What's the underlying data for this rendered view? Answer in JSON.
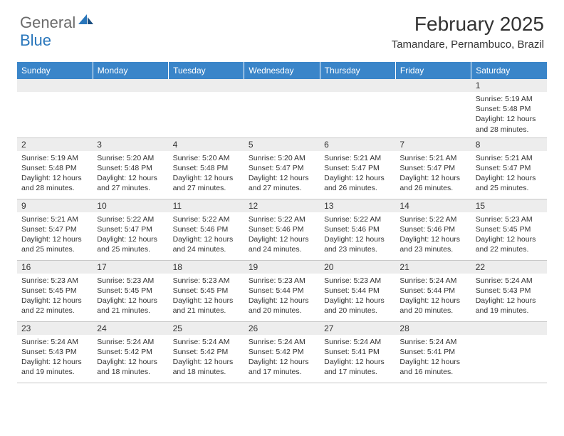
{
  "logo": {
    "part1": "General",
    "part2": "Blue"
  },
  "title": "February 2025",
  "location": "Tamandare, Pernambuco, Brazil",
  "header_bg": "#3a85c9",
  "daynum_bg": "#ededed",
  "weekdays": [
    "Sunday",
    "Monday",
    "Tuesday",
    "Wednesday",
    "Thursday",
    "Friday",
    "Saturday"
  ],
  "weeks": [
    [
      null,
      null,
      null,
      null,
      null,
      null,
      {
        "n": "1",
        "sr": "Sunrise: 5:19 AM",
        "ss": "Sunset: 5:48 PM",
        "dl": "Daylight: 12 hours and 28 minutes."
      }
    ],
    [
      {
        "n": "2",
        "sr": "Sunrise: 5:19 AM",
        "ss": "Sunset: 5:48 PM",
        "dl": "Daylight: 12 hours and 28 minutes."
      },
      {
        "n": "3",
        "sr": "Sunrise: 5:20 AM",
        "ss": "Sunset: 5:48 PM",
        "dl": "Daylight: 12 hours and 27 minutes."
      },
      {
        "n": "4",
        "sr": "Sunrise: 5:20 AM",
        "ss": "Sunset: 5:48 PM",
        "dl": "Daylight: 12 hours and 27 minutes."
      },
      {
        "n": "5",
        "sr": "Sunrise: 5:20 AM",
        "ss": "Sunset: 5:47 PM",
        "dl": "Daylight: 12 hours and 27 minutes."
      },
      {
        "n": "6",
        "sr": "Sunrise: 5:21 AM",
        "ss": "Sunset: 5:47 PM",
        "dl": "Daylight: 12 hours and 26 minutes."
      },
      {
        "n": "7",
        "sr": "Sunrise: 5:21 AM",
        "ss": "Sunset: 5:47 PM",
        "dl": "Daylight: 12 hours and 26 minutes."
      },
      {
        "n": "8",
        "sr": "Sunrise: 5:21 AM",
        "ss": "Sunset: 5:47 PM",
        "dl": "Daylight: 12 hours and 25 minutes."
      }
    ],
    [
      {
        "n": "9",
        "sr": "Sunrise: 5:21 AM",
        "ss": "Sunset: 5:47 PM",
        "dl": "Daylight: 12 hours and 25 minutes."
      },
      {
        "n": "10",
        "sr": "Sunrise: 5:22 AM",
        "ss": "Sunset: 5:47 PM",
        "dl": "Daylight: 12 hours and 25 minutes."
      },
      {
        "n": "11",
        "sr": "Sunrise: 5:22 AM",
        "ss": "Sunset: 5:46 PM",
        "dl": "Daylight: 12 hours and 24 minutes."
      },
      {
        "n": "12",
        "sr": "Sunrise: 5:22 AM",
        "ss": "Sunset: 5:46 PM",
        "dl": "Daylight: 12 hours and 24 minutes."
      },
      {
        "n": "13",
        "sr": "Sunrise: 5:22 AM",
        "ss": "Sunset: 5:46 PM",
        "dl": "Daylight: 12 hours and 23 minutes."
      },
      {
        "n": "14",
        "sr": "Sunrise: 5:22 AM",
        "ss": "Sunset: 5:46 PM",
        "dl": "Daylight: 12 hours and 23 minutes."
      },
      {
        "n": "15",
        "sr": "Sunrise: 5:23 AM",
        "ss": "Sunset: 5:45 PM",
        "dl": "Daylight: 12 hours and 22 minutes."
      }
    ],
    [
      {
        "n": "16",
        "sr": "Sunrise: 5:23 AM",
        "ss": "Sunset: 5:45 PM",
        "dl": "Daylight: 12 hours and 22 minutes."
      },
      {
        "n": "17",
        "sr": "Sunrise: 5:23 AM",
        "ss": "Sunset: 5:45 PM",
        "dl": "Daylight: 12 hours and 21 minutes."
      },
      {
        "n": "18",
        "sr": "Sunrise: 5:23 AM",
        "ss": "Sunset: 5:45 PM",
        "dl": "Daylight: 12 hours and 21 minutes."
      },
      {
        "n": "19",
        "sr": "Sunrise: 5:23 AM",
        "ss": "Sunset: 5:44 PM",
        "dl": "Daylight: 12 hours and 20 minutes."
      },
      {
        "n": "20",
        "sr": "Sunrise: 5:23 AM",
        "ss": "Sunset: 5:44 PM",
        "dl": "Daylight: 12 hours and 20 minutes."
      },
      {
        "n": "21",
        "sr": "Sunrise: 5:24 AM",
        "ss": "Sunset: 5:44 PM",
        "dl": "Daylight: 12 hours and 20 minutes."
      },
      {
        "n": "22",
        "sr": "Sunrise: 5:24 AM",
        "ss": "Sunset: 5:43 PM",
        "dl": "Daylight: 12 hours and 19 minutes."
      }
    ],
    [
      {
        "n": "23",
        "sr": "Sunrise: 5:24 AM",
        "ss": "Sunset: 5:43 PM",
        "dl": "Daylight: 12 hours and 19 minutes."
      },
      {
        "n": "24",
        "sr": "Sunrise: 5:24 AM",
        "ss": "Sunset: 5:42 PM",
        "dl": "Daylight: 12 hours and 18 minutes."
      },
      {
        "n": "25",
        "sr": "Sunrise: 5:24 AM",
        "ss": "Sunset: 5:42 PM",
        "dl": "Daylight: 12 hours and 18 minutes."
      },
      {
        "n": "26",
        "sr": "Sunrise: 5:24 AM",
        "ss": "Sunset: 5:42 PM",
        "dl": "Daylight: 12 hours and 17 minutes."
      },
      {
        "n": "27",
        "sr": "Sunrise: 5:24 AM",
        "ss": "Sunset: 5:41 PM",
        "dl": "Daylight: 12 hours and 17 minutes."
      },
      {
        "n": "28",
        "sr": "Sunrise: 5:24 AM",
        "ss": "Sunset: 5:41 PM",
        "dl": "Daylight: 12 hours and 16 minutes."
      },
      null
    ]
  ]
}
